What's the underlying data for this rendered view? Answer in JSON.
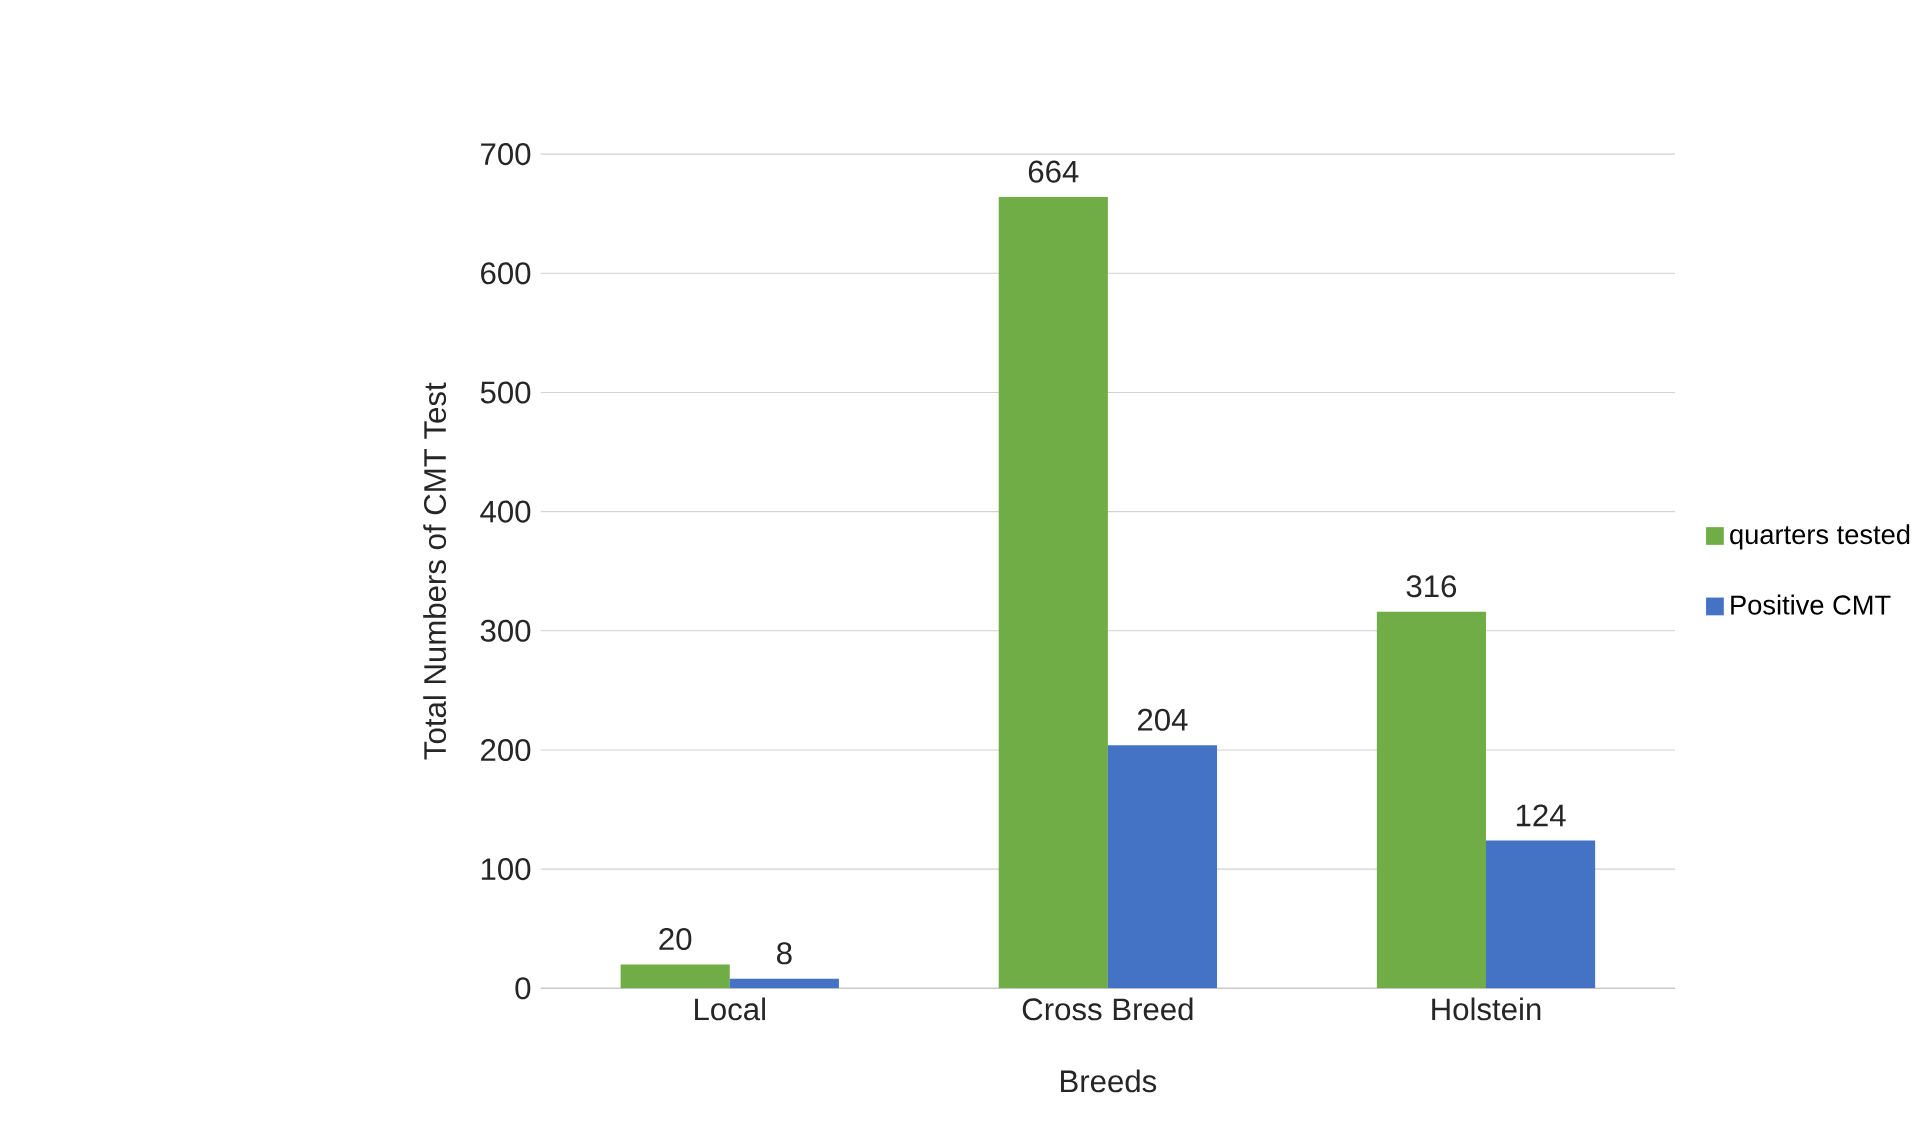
{
  "chart_data": {
    "type": "bar",
    "xlabel": "Breeds",
    "ylabel": "Total Numbers of CMT Test",
    "categories": [
      "Local",
      "Cross Breed",
      "Holstein"
    ],
    "series": [
      {
        "name": "quarters tested",
        "color": "#70ad47",
        "values": [
          20,
          664,
          316
        ]
      },
      {
        "name": "Positive CMT",
        "color": "#4472c4",
        "values": [
          8,
          204,
          124
        ]
      }
    ],
    "ylim": [
      0,
      700
    ],
    "yticks": [
      0,
      100,
      200,
      300,
      400,
      500,
      600,
      700
    ],
    "grid": "y",
    "legend": "right",
    "data_labels": true
  }
}
